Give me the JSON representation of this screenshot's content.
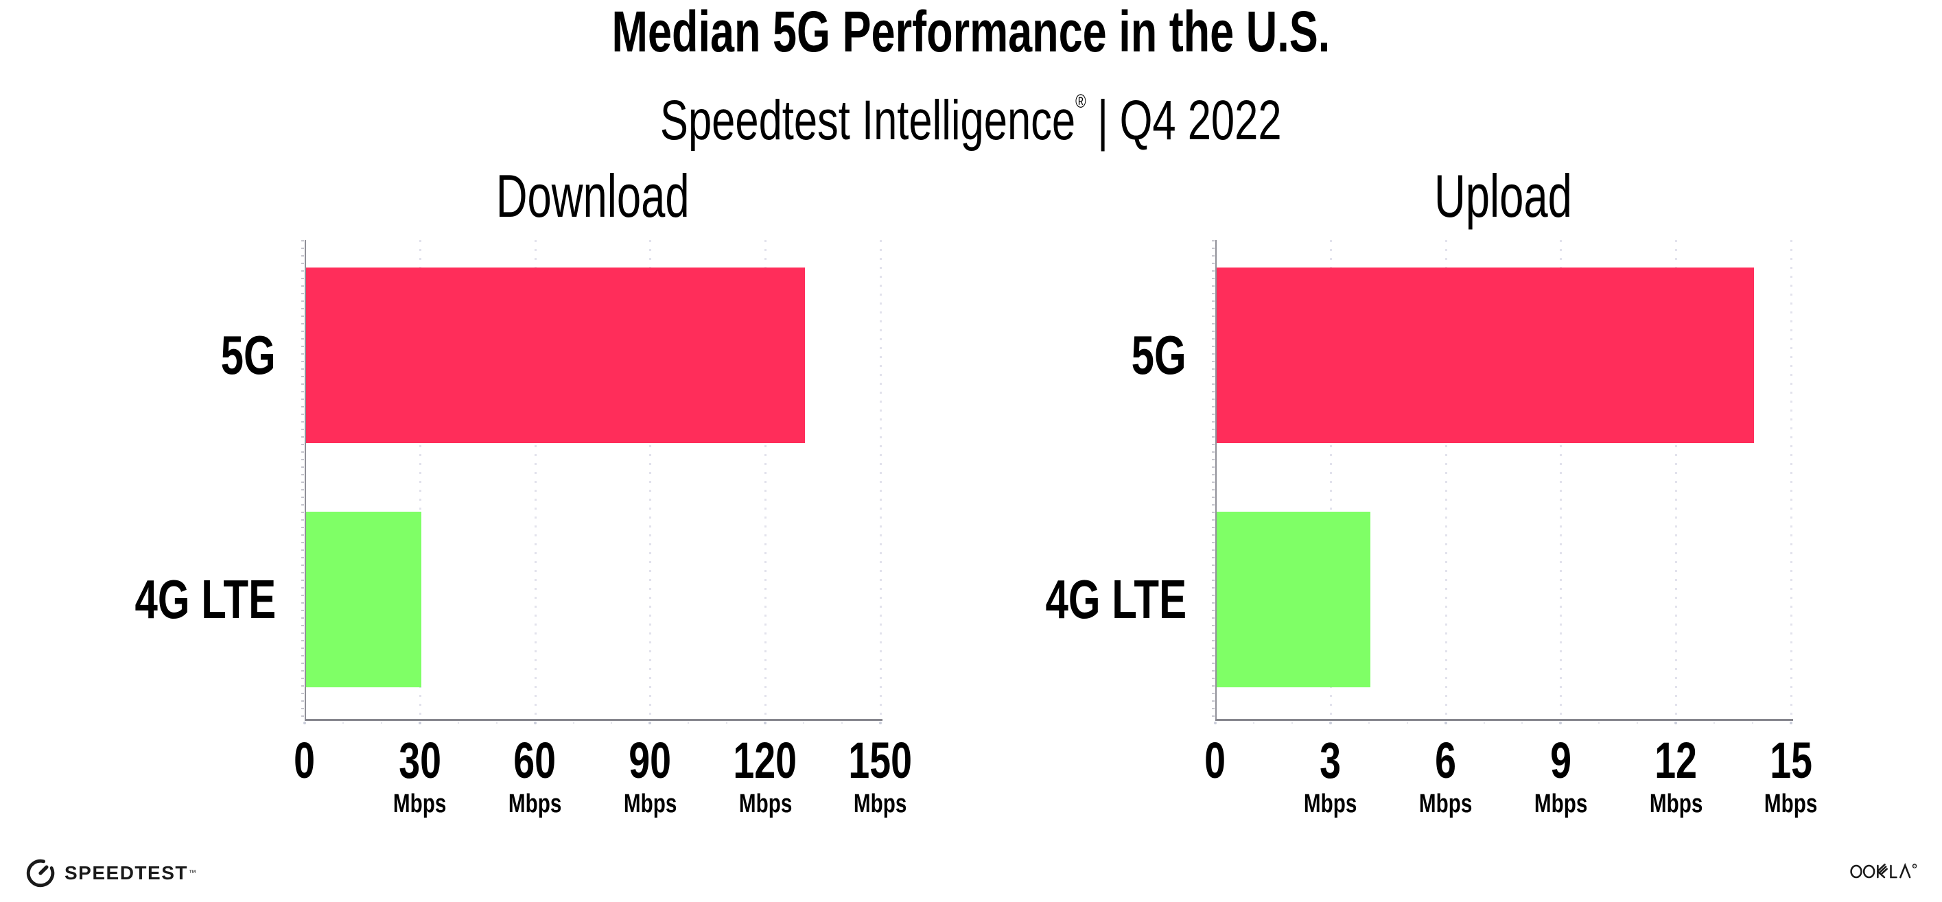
{
  "title": "Median 5G Performance in the U.S.",
  "subtitle": {
    "brand": "Speedtest Intelligence",
    "reg": "®",
    "divider": "|",
    "period": "Q4 2022"
  },
  "footer": {
    "speedtest_logo": "SPEEDTEST",
    "speedtest_tm": "™",
    "ookla_logo": "OOKLA",
    "ookla_reg": "®"
  },
  "colors": {
    "bar_5g": "#FF2D5A",
    "bar_4g_lte": "#7FFF66",
    "x_axis": "#85858d",
    "y_axis": "#909098",
    "grid_dot": "#e2e2ec",
    "tick_dot": "#c9cdd9",
    "text": "#000000"
  },
  "chart_data": [
    {
      "type": "bar",
      "orientation": "horizontal",
      "title": "Download",
      "categories": [
        "5G",
        "4G LTE"
      ],
      "values": [
        130,
        30
      ],
      "unit": "Mbps",
      "xlim": [
        0,
        150
      ],
      "xticks": [
        0,
        30,
        60,
        90,
        120,
        150
      ],
      "grid": "dotted-vertical",
      "legend": "none",
      "bar_colors": [
        "#FF2D5A",
        "#7FFF66"
      ]
    },
    {
      "type": "bar",
      "orientation": "horizontal",
      "title": "Upload",
      "categories": [
        "5G",
        "4G LTE"
      ],
      "values": [
        14,
        4
      ],
      "unit": "Mbps",
      "xlim": [
        0,
        15
      ],
      "xticks": [
        0,
        3,
        6,
        9,
        12,
        15
      ],
      "grid": "dotted-vertical",
      "legend": "none",
      "bar_colors": [
        "#FF2D5A",
        "#7FFF66"
      ]
    }
  ]
}
